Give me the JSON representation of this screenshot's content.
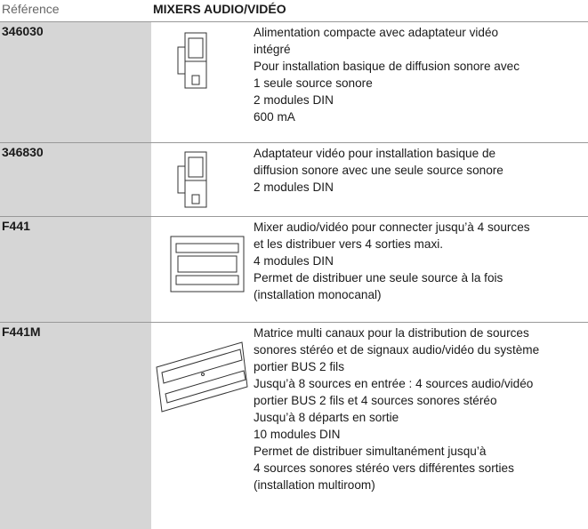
{
  "header": {
    "reference_label": "Référence",
    "title": "MIXERS AUDIO/VIDÉO"
  },
  "rows": [
    {
      "reference": "346030",
      "lines": [
        "Alimentation compacte avec adaptateur vidéo",
        "intégré",
        "Pour installation basique de diffusion sonore avec",
        "1 seule source sonore",
        "2 modules DIN",
        "600 mA"
      ]
    },
    {
      "reference": "346830",
      "lines": [
        "Adaptateur vidéo pour installation basique de",
        "diffusion sonore avec une seule source sonore",
        "2 modules DIN"
      ]
    },
    {
      "reference": "F441",
      "lines": [
        "Mixer audio/vidéo pour connecter jusqu’à 4 sources",
        "et les distribuer vers 4 sorties maxi.",
        "4 modules DIN",
        "Permet de distribuer une seule source à la fois",
        "(installation monocanal)"
      ]
    },
    {
      "reference": "F441M",
      "lines": [
        "Matrice multi canaux pour la distribution de sources",
        "sonores stéréo et de signaux audio/vidéo du système",
        "portier BUS 2 fils",
        "Jusqu’à 8 sources en entrée : 4 sources audio/vidéo",
        "portier BUS 2 fils et 4 sources sonores stéréo",
        "Jusqu’à 8 départs en sortie",
        "10 modules DIN",
        "Permet de distribuer simultanément jusqu’à",
        "4 sources sonores stéréo vers différentes sorties",
        "(installation multiroom)"
      ]
    }
  ]
}
